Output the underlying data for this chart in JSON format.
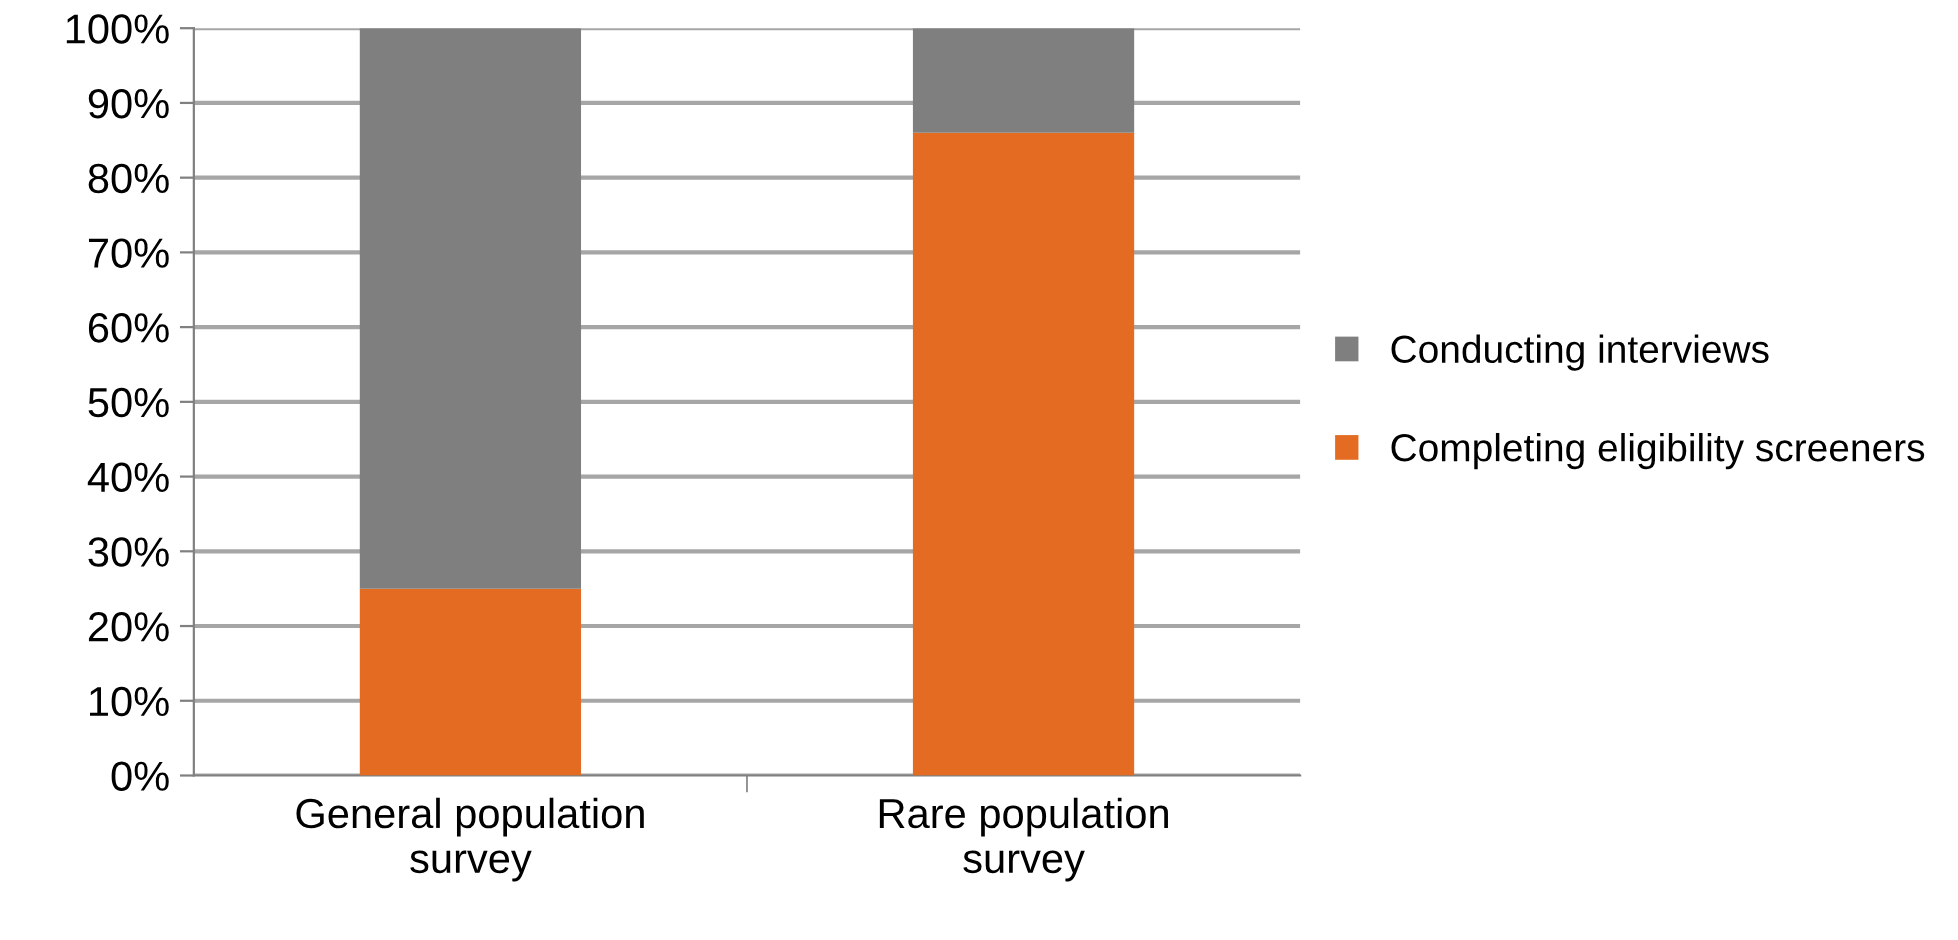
{
  "chart_data": {
    "type": "bar",
    "stacked": true,
    "categories": [
      "General population survey",
      "Rare population survey"
    ],
    "series": [
      {
        "name": "Completing eligibility screeners",
        "color": "#e36c22",
        "values": [
          25,
          86
        ]
      },
      {
        "name": "Conducting interviews",
        "color": "#7f7f7f",
        "values": [
          75,
          14
        ]
      }
    ],
    "ylim": [
      0,
      100
    ],
    "yticks": [
      {
        "value": 0,
        "label": "0%"
      },
      {
        "value": 10,
        "label": "10%"
      },
      {
        "value": 20,
        "label": "20%"
      },
      {
        "value": 30,
        "label": "30%"
      },
      {
        "value": 40,
        "label": "40%"
      },
      {
        "value": 50,
        "label": "50%"
      },
      {
        "value": 60,
        "label": "60%"
      },
      {
        "value": 70,
        "label": "70%"
      },
      {
        "value": 80,
        "label": "80%"
      },
      {
        "value": 90,
        "label": "90%"
      },
      {
        "value": 100,
        "label": "100%"
      }
    ],
    "grid": "y",
    "legend": "right"
  }
}
